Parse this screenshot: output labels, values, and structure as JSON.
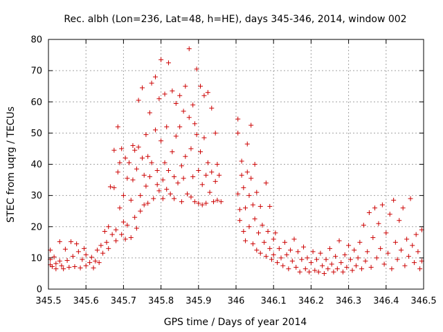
{
  "chart_data": {
    "type": "scatter",
    "title": "Rec. albh (Lon=236, Lat=48, h=HE), days 345-346, 2014, window 002",
    "xlabel": "GPS time / Days of year 2014",
    "ylabel": "STEC from uqrg / TECUs",
    "xlim": [
      345.5,
      346.5
    ],
    "ylim": [
      0,
      80
    ],
    "xticks": [
      345.5,
      345.6,
      345.7,
      345.8,
      345.9,
      346.0,
      346.1,
      346.2,
      346.3,
      346.4,
      346.5
    ],
    "xtick_labels": [
      "345.5",
      "345.6",
      "345.7",
      "345.8",
      "345.9",
      "346",
      "346.1",
      "346.2",
      "346.3",
      "346.4",
      "346.5"
    ],
    "yticks": [
      0,
      10,
      20,
      30,
      40,
      50,
      60,
      70,
      80
    ],
    "ytick_labels": [
      "0",
      "10",
      "20",
      "30",
      "40",
      "50",
      "60",
      "70",
      "80"
    ],
    "grid": true,
    "marker": "plus",
    "color": "#cc0000",
    "series": [
      {
        "name": "",
        "points": [
          [
            345.505,
            12.5
          ],
          [
            345.505,
            9.5
          ],
          [
            345.505,
            7.8
          ],
          [
            345.51,
            7.2
          ],
          [
            345.515,
            10.3
          ],
          [
            345.52,
            8.2
          ],
          [
            345.52,
            6.5
          ],
          [
            345.53,
            9.0
          ],
          [
            345.53,
            15.2
          ],
          [
            345.535,
            7.5
          ],
          [
            345.54,
            6.5
          ],
          [
            345.545,
            12.8
          ],
          [
            345.55,
            9.2
          ],
          [
            345.555,
            7.0
          ],
          [
            345.56,
            15.2
          ],
          [
            345.565,
            10.5
          ],
          [
            345.57,
            7.2
          ],
          [
            345.575,
            14.5
          ],
          [
            345.58,
            12.0
          ],
          [
            345.585,
            6.8
          ],
          [
            345.59,
            9.5
          ],
          [
            345.595,
            13.0
          ],
          [
            345.6,
            11.0
          ],
          [
            345.6,
            7.5
          ],
          [
            345.61,
            8.5
          ],
          [
            345.615,
            10.2
          ],
          [
            345.62,
            6.8
          ],
          [
            345.625,
            9.0
          ],
          [
            345.63,
            12.5
          ],
          [
            345.635,
            8.5
          ],
          [
            345.64,
            14.0
          ],
          [
            345.645,
            11.5
          ],
          [
            345.65,
            18.5
          ],
          [
            345.655,
            15.0
          ],
          [
            345.66,
            20.0
          ],
          [
            345.66,
            13.0
          ],
          [
            345.665,
            32.8
          ],
          [
            345.67,
            17.5
          ],
          [
            345.675,
            32.5
          ],
          [
            345.675,
            44.5
          ],
          [
            345.68,
            19.0
          ],
          [
            345.68,
            15.5
          ],
          [
            345.685,
            52.0
          ],
          [
            345.685,
            37.5
          ],
          [
            345.69,
            26.0
          ],
          [
            345.69,
            40.5
          ],
          [
            345.695,
            17.5
          ],
          [
            345.695,
            45.0
          ],
          [
            345.7,
            30.0
          ],
          [
            345.7,
            21.5
          ],
          [
            345.705,
            42.0
          ],
          [
            345.705,
            16.0
          ],
          [
            345.71,
            35.5
          ],
          [
            345.71,
            20.5
          ],
          [
            345.715,
            40.5
          ],
          [
            345.72,
            28.5
          ],
          [
            345.72,
            16.5
          ],
          [
            345.725,
            46.0
          ],
          [
            345.725,
            35.0
          ],
          [
            345.73,
            44.5
          ],
          [
            345.73,
            23.0
          ],
          [
            345.735,
            38.5
          ],
          [
            345.735,
            19.5
          ],
          [
            345.74,
            60.5
          ],
          [
            345.74,
            45.5
          ],
          [
            345.745,
            30.0
          ],
          [
            345.745,
            25.0
          ],
          [
            345.75,
            64.5
          ],
          [
            345.75,
            42.0
          ],
          [
            345.755,
            36.5
          ],
          [
            345.755,
            27.0
          ],
          [
            345.76,
            49.5
          ],
          [
            345.76,
            33.0
          ],
          [
            345.765,
            42.5
          ],
          [
            345.765,
            27.5
          ],
          [
            345.77,
            56.5
          ],
          [
            345.77,
            36.0
          ],
          [
            345.775,
            66.0
          ],
          [
            345.775,
            40.5
          ],
          [
            345.78,
            29.0
          ],
          [
            345.785,
            68.0
          ],
          [
            345.785,
            51.0
          ],
          [
            345.79,
            38.0
          ],
          [
            345.79,
            33.5
          ],
          [
            345.795,
            61.0
          ],
          [
            345.795,
            31.5
          ],
          [
            345.8,
            73.5
          ],
          [
            345.8,
            47.5
          ],
          [
            345.805,
            35.0
          ],
          [
            345.805,
            29.0
          ],
          [
            345.81,
            62.5
          ],
          [
            345.81,
            40.5
          ],
          [
            345.815,
            52.0
          ],
          [
            345.815,
            32.0
          ],
          [
            345.82,
            72.5
          ],
          [
            345.82,
            38.0
          ],
          [
            345.825,
            30.5
          ],
          [
            345.83,
            63.5
          ],
          [
            345.83,
            44.0
          ],
          [
            345.835,
            36.0
          ],
          [
            345.835,
            29.0
          ],
          [
            345.84,
            59.5
          ],
          [
            345.84,
            49.0
          ],
          [
            345.845,
            34.0
          ],
          [
            345.85,
            62.0
          ],
          [
            345.85,
            52.0
          ],
          [
            345.855,
            39.5
          ],
          [
            345.855,
            28.0
          ],
          [
            345.86,
            57.0
          ],
          [
            345.86,
            35.5
          ],
          [
            345.865,
            65.0
          ],
          [
            345.865,
            42.5
          ],
          [
            345.87,
            30.5
          ],
          [
            345.875,
            77.0
          ],
          [
            345.875,
            55.0
          ],
          [
            345.88,
            45.0
          ],
          [
            345.88,
            29.5
          ],
          [
            345.885,
            59.0
          ],
          [
            345.885,
            36.0
          ],
          [
            345.89,
            53.0
          ],
          [
            345.89,
            28.0
          ],
          [
            345.895,
            70.5
          ],
          [
            345.895,
            49.5
          ],
          [
            345.9,
            38.0
          ],
          [
            345.9,
            27.5
          ],
          [
            345.905,
            65.0
          ],
          [
            345.905,
            44.0
          ],
          [
            345.91,
            33.5
          ],
          [
            345.91,
            27.0
          ],
          [
            345.915,
            62.0
          ],
          [
            345.915,
            48.5
          ],
          [
            345.92,
            36.5
          ],
          [
            345.92,
            27.5
          ],
          [
            345.925,
            63.0
          ],
          [
            345.925,
            40.5
          ],
          [
            345.93,
            31.0
          ],
          [
            345.935,
            58.0
          ],
          [
            345.935,
            37.5
          ],
          [
            345.94,
            28.0
          ],
          [
            345.945,
            50.0
          ],
          [
            345.945,
            34.5
          ],
          [
            345.95,
            40.0
          ],
          [
            345.95,
            28.5
          ],
          [
            345.955,
            36.5
          ],
          [
            345.96,
            28.0
          ],
          [
            346.005,
            54.5
          ],
          [
            346.005,
            50.0
          ],
          [
            346.005,
            30.5
          ],
          [
            346.01,
            25.5
          ],
          [
            346.01,
            22.0
          ],
          [
            346.015,
            41.0
          ],
          [
            346.015,
            36.5
          ],
          [
            346.02,
            32.5
          ],
          [
            346.02,
            18.5
          ],
          [
            346.025,
            26.0
          ],
          [
            346.025,
            15.5
          ],
          [
            346.03,
            46.5
          ],
          [
            346.03,
            37.5
          ],
          [
            346.035,
            30.0
          ],
          [
            346.035,
            20.0
          ],
          [
            346.04,
            52.5
          ],
          [
            346.04,
            35.5
          ],
          [
            346.045,
            27.0
          ],
          [
            346.045,
            14.5
          ],
          [
            346.05,
            40.0
          ],
          [
            346.05,
            22.5
          ],
          [
            346.055,
            31.0
          ],
          [
            346.055,
            12.5
          ],
          [
            346.06,
            18.0
          ],
          [
            346.065,
            26.5
          ],
          [
            346.065,
            11.5
          ],
          [
            346.07,
            20.5
          ],
          [
            346.075,
            15.0
          ],
          [
            346.08,
            34.0
          ],
          [
            346.08,
            10.5
          ],
          [
            346.085,
            18.5
          ],
          [
            346.09,
            26.5
          ],
          [
            346.09,
            13.0
          ],
          [
            346.095,
            9.5
          ],
          [
            346.1,
            16.0
          ],
          [
            346.1,
            11.0
          ],
          [
            346.105,
            18.0
          ],
          [
            346.11,
            8.5
          ],
          [
            346.115,
            13.0
          ],
          [
            346.12,
            10.0
          ],
          [
            346.125,
            7.5
          ],
          [
            346.13,
            15.0
          ],
          [
            346.135,
            11.0
          ],
          [
            346.14,
            6.5
          ],
          [
            346.145,
            12.5
          ],
          [
            346.15,
            9.0
          ],
          [
            346.155,
            16.0
          ],
          [
            346.16,
            7.0
          ],
          [
            346.165,
            12.0
          ],
          [
            346.17,
            5.5
          ],
          [
            346.175,
            9.5
          ],
          [
            346.18,
            13.5
          ],
          [
            346.185,
            6.5
          ],
          [
            346.19,
            10.0
          ],
          [
            346.195,
            5.5
          ],
          [
            346.2,
            8.5
          ],
          [
            346.205,
            12.0
          ],
          [
            346.21,
            6.0
          ],
          [
            346.215,
            9.5
          ],
          [
            346.22,
            5.5
          ],
          [
            346.225,
            11.5
          ],
          [
            346.23,
            7.5
          ],
          [
            346.235,
            5.0
          ],
          [
            346.24,
            9.5
          ],
          [
            346.245,
            6.5
          ],
          [
            346.25,
            13.0
          ],
          [
            346.255,
            8.0
          ],
          [
            346.26,
            5.5
          ],
          [
            346.265,
            10.5
          ],
          [
            346.27,
            6.5
          ],
          [
            346.275,
            15.5
          ],
          [
            346.28,
            8.5
          ],
          [
            346.285,
            5.5
          ],
          [
            346.29,
            11.0
          ],
          [
            346.295,
            7.0
          ],
          [
            346.3,
            14.0
          ],
          [
            346.305,
            9.5
          ],
          [
            346.31,
            6.0
          ],
          [
            346.315,
            12.5
          ],
          [
            346.32,
            7.5
          ],
          [
            346.325,
            10.0
          ],
          [
            346.33,
            15.0
          ],
          [
            346.335,
            6.5
          ],
          [
            346.34,
            20.5
          ],
          [
            346.345,
            9.0
          ],
          [
            346.35,
            12.0
          ],
          [
            346.355,
            24.5
          ],
          [
            346.36,
            7.0
          ],
          [
            346.365,
            16.5
          ],
          [
            346.37,
            26.0
          ],
          [
            346.375,
            10.0
          ],
          [
            346.38,
            21.0
          ],
          [
            346.385,
            13.0
          ],
          [
            346.39,
            27.0
          ],
          [
            346.395,
            8.0
          ],
          [
            346.4,
            18.0
          ],
          [
            346.405,
            11.5
          ],
          [
            346.41,
            24.0
          ],
          [
            346.415,
            6.5
          ],
          [
            346.42,
            28.5
          ],
          [
            346.425,
            15.0
          ],
          [
            346.43,
            9.5
          ],
          [
            346.435,
            22.0
          ],
          [
            346.44,
            12.5
          ],
          [
            346.445,
            26.0
          ],
          [
            346.45,
            7.5
          ],
          [
            346.455,
            16.0
          ],
          [
            346.46,
            10.5
          ],
          [
            346.465,
            29.0
          ],
          [
            346.47,
            14.0
          ],
          [
            346.475,
            8.5
          ],
          [
            346.48,
            17.5
          ],
          [
            346.485,
            12.0
          ],
          [
            346.49,
            6.5
          ],
          [
            346.495,
            19.0
          ],
          [
            346.495,
            9.0
          ]
        ]
      }
    ]
  }
}
